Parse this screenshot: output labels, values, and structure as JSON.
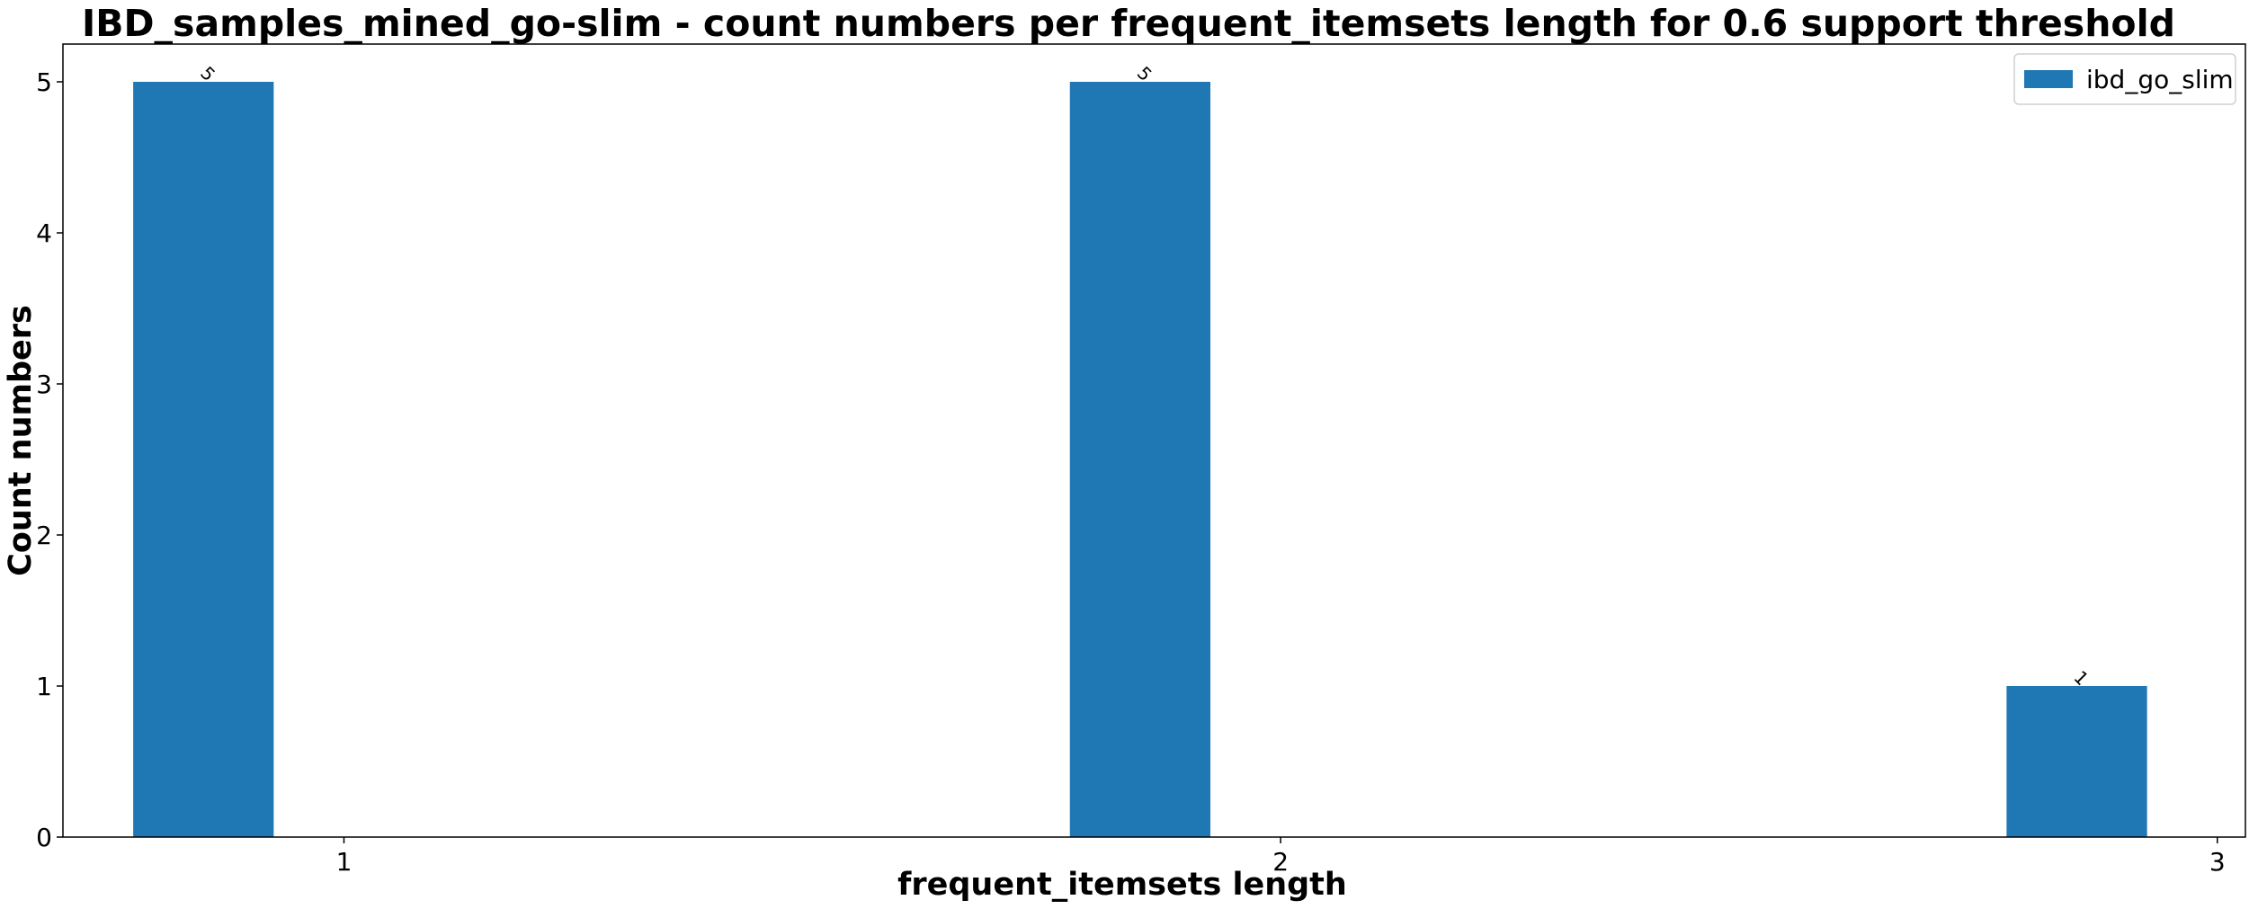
{
  "chart_data": {
    "type": "bar",
    "title": "IBD_samples_mined_go-slim - count numbers per frequent_itemsets length for 0.6 support threshold",
    "xlabel": "frequent_itemsets length",
    "ylabel": "Count numbers",
    "categories": [
      "1",
      "2",
      "3"
    ],
    "series": [
      {
        "name": "ibd_go_slim",
        "values": [
          5,
          5,
          1
        ],
        "color": "#1f77b4"
      }
    ],
    "ylim": [
      0,
      5.25
    ],
    "xlim": [
      0.7,
      3.03
    ],
    "yticks": [
      0,
      1,
      2,
      3,
      4,
      5
    ],
    "bar_offset": -0.15,
    "bar_width": 0.15,
    "bar_labels": [
      "5",
      "5",
      "1"
    ],
    "bar_label_rotation": 45,
    "legend_position": "top-right",
    "grid": false
  }
}
